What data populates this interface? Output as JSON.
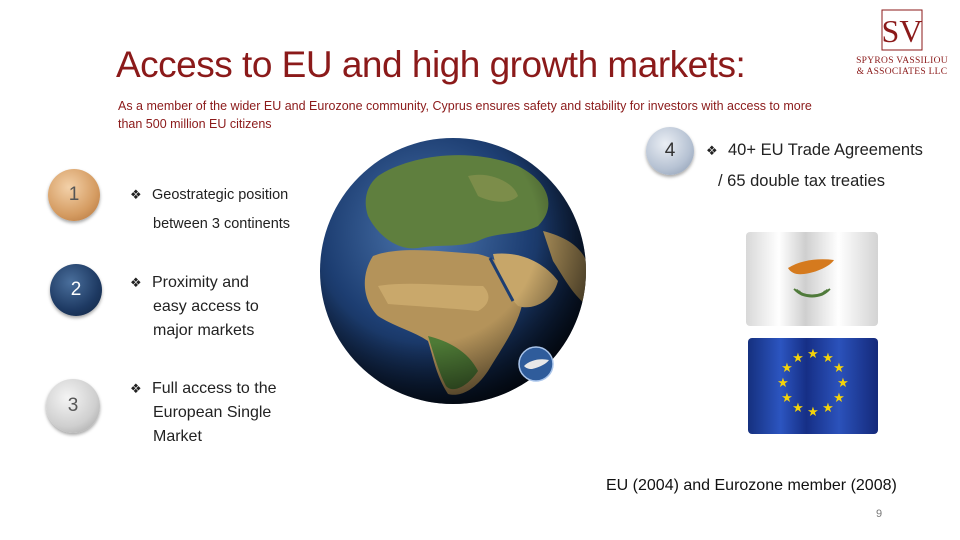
{
  "slide": {
    "title": "Access to EU and high growth markets:",
    "subtitle": "As a member of the wider EU and Eurozone community, Cyprus ensures safety and stability for investors with access to more than 500 million EU citizens",
    "page_number": "9"
  },
  "logo": {
    "monogram": "SV",
    "line1": "SPYROS VASSILIOU",
    "line2": "& ASSOCIATES LLC"
  },
  "points": [
    {
      "number": "1",
      "line1": "Geostrategic position",
      "line2": "between 3 continents"
    },
    {
      "number": "2",
      "line1": "Proximity  and",
      "line2": "easy access to",
      "line3": "major markets"
    },
    {
      "number": "3",
      "line1": "Full access to the",
      "line2": "European Single",
      "line3": "Market"
    },
    {
      "number": "4",
      "line1": "40+ EU Trade Agreements",
      "line2": "/  65 double tax treaties"
    }
  ],
  "footer": {
    "membership": "EU (2004) and Eurozone member (2008)"
  },
  "colors": {
    "brand_red": "#8b1a1a",
    "navy": "#1e3a63",
    "copper": "#d59c62",
    "silver": "#cfcfcf",
    "eu_blue": "#1f3fa8",
    "eu_gold": "#f4d20a",
    "cyprus_copper": "#d57a1e"
  },
  "icons": {
    "bullet": "diamond-bullet-icon",
    "globe": "globe-image",
    "cyprus_flag": "cyprus-flag-image",
    "eu_flag": "eu-flag-image",
    "cyprus_map": "cyprus-map-icon"
  }
}
